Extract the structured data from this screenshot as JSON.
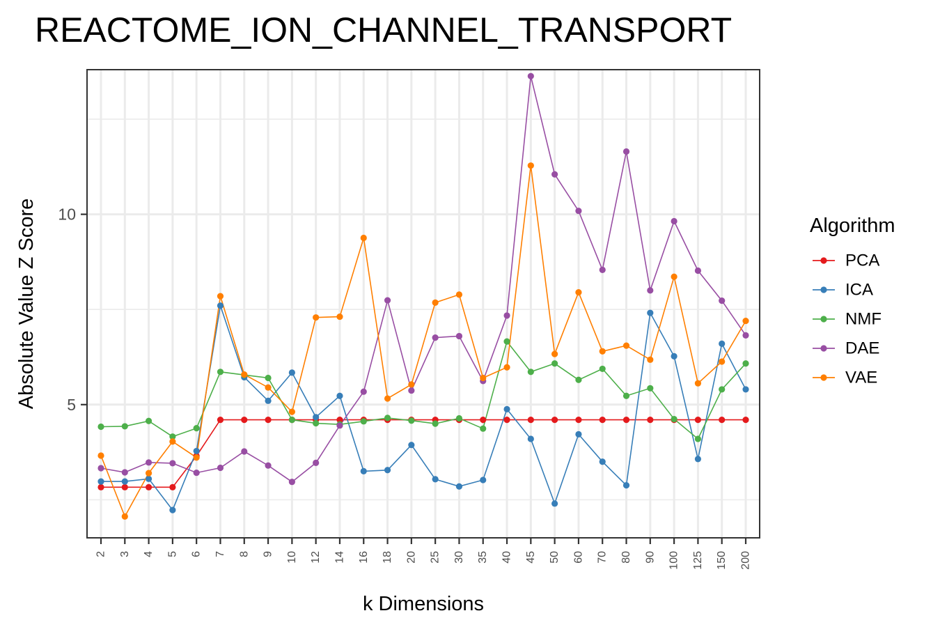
{
  "chart_data": {
    "type": "line",
    "title": "REACTOME_ION_CHANNEL_TRANSPORT",
    "xlabel": "k Dimensions",
    "ylabel": "Absolute Value Z Score",
    "categories": [
      "2",
      "3",
      "4",
      "5",
      "6",
      "7",
      "8",
      "9",
      "10",
      "12",
      "14",
      "16",
      "18",
      "20",
      "25",
      "30",
      "35",
      "40",
      "45",
      "50",
      "60",
      "70",
      "80",
      "90",
      "100",
      "125",
      "150",
      "200"
    ],
    "ylim": [
      1.5,
      13.8
    ],
    "yticks": [
      5,
      10
    ],
    "ytick_labels": [
      "5",
      "10"
    ],
    "grid": true,
    "legend": {
      "title": "Algorithm",
      "position": "right"
    },
    "series": [
      {
        "name": "PCA",
        "color": "#e41a1c",
        "values": [
          2.83,
          2.83,
          2.83,
          2.83,
          3.65,
          4.6,
          4.6,
          4.6,
          4.6,
          4.6,
          4.6,
          4.6,
          4.6,
          4.6,
          4.6,
          4.6,
          4.6,
          4.6,
          4.6,
          4.6,
          4.6,
          4.6,
          4.6,
          4.6,
          4.6,
          4.6,
          4.6,
          4.6
        ]
      },
      {
        "name": "ICA",
        "color": "#377eb8",
        "values": [
          2.98,
          2.98,
          3.05,
          2.23,
          3.78,
          7.6,
          5.72,
          5.1,
          5.84,
          4.67,
          5.23,
          3.25,
          3.28,
          3.94,
          3.04,
          2.85,
          3.02,
          4.88,
          4.1,
          2.4,
          4.22,
          3.5,
          2.88,
          7.41,
          6.27,
          3.57,
          6.6,
          5.4
        ]
      },
      {
        "name": "NMF",
        "color": "#4daf4a",
        "values": [
          4.42,
          4.43,
          4.57,
          4.16,
          4.38,
          5.86,
          5.78,
          5.7,
          4.6,
          4.51,
          4.48,
          4.56,
          4.65,
          4.58,
          4.5,
          4.64,
          4.37,
          6.66,
          5.86,
          6.08,
          5.65,
          5.94,
          5.23,
          5.43,
          4.62,
          4.1,
          5.4,
          6.08
        ]
      },
      {
        "name": "DAE",
        "color": "#984ea3",
        "values": [
          3.33,
          3.22,
          3.48,
          3.46,
          3.21,
          3.34,
          3.77,
          3.4,
          2.97,
          3.47,
          4.45,
          5.34,
          7.74,
          5.37,
          6.76,
          6.8,
          5.62,
          7.34,
          13.63,
          11.05,
          10.09,
          8.54,
          11.65,
          8.0,
          9.82,
          8.52,
          7.73,
          6.82
        ]
      },
      {
        "name": "VAE",
        "color": "#ff7f00",
        "values": [
          3.66,
          2.06,
          3.2,
          4.03,
          3.61,
          7.85,
          5.79,
          5.45,
          4.81,
          7.29,
          7.31,
          9.38,
          5.16,
          5.53,
          7.68,
          7.89,
          5.7,
          5.98,
          11.28,
          6.33,
          7.95,
          6.4,
          6.55,
          6.18,
          8.36,
          5.56,
          6.13,
          7.2
        ]
      }
    ]
  }
}
